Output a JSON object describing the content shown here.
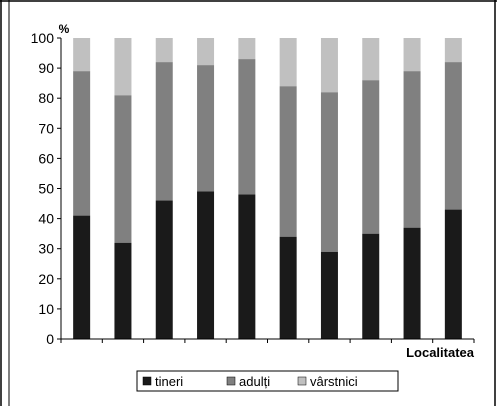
{
  "chart_data": {
    "type": "bar",
    "stacked": true,
    "y_unit": "%",
    "xlabel": "Localitatea",
    "ylim": [
      0,
      100
    ],
    "yticks": [
      "0",
      "10",
      "20",
      "30",
      "40",
      "50",
      "60",
      "70",
      "80",
      "90",
      "100"
    ],
    "categories": [
      "",
      "",
      "",
      "",
      "",
      "",
      "",
      "",
      "",
      ""
    ],
    "series": [
      {
        "name": "tineri",
        "color": "#1a1a1a",
        "values": [
          41,
          32,
          46,
          49,
          48,
          34,
          29,
          35,
          37,
          43
        ]
      },
      {
        "name": "adulți",
        "color": "#808080",
        "values": [
          48,
          49,
          46,
          42,
          45,
          50,
          53,
          51,
          52,
          49
        ]
      },
      {
        "name": "vârstnici",
        "color": "#c0c0c0",
        "values": [
          11,
          19,
          8,
          9,
          7,
          16,
          18,
          14,
          11,
          8
        ]
      }
    ],
    "legend_position": "bottom",
    "grid": false
  }
}
